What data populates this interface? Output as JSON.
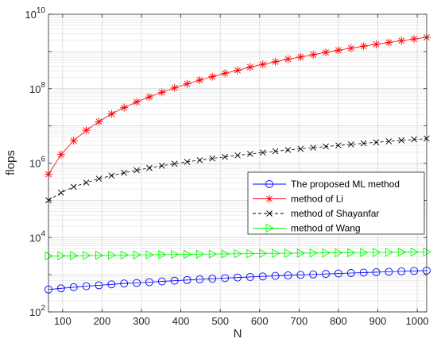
{
  "chart_data": {
    "type": "line",
    "xlabel": "N",
    "ylabel": "flops",
    "xlim": [
      64,
      1024
    ],
    "ylim": [
      100,
      10000000000
    ],
    "y_scale": "log",
    "grid": true,
    "legend_position": "right",
    "x_ticks": [
      100,
      200,
      300,
      400,
      500,
      600,
      700,
      800,
      900,
      1000
    ],
    "y_ticks": [
      {
        "value": 100,
        "base": "10",
        "exp": "2"
      },
      {
        "value": 10000,
        "base": "10",
        "exp": "4"
      },
      {
        "value": 1000000,
        "base": "10",
        "exp": "6"
      },
      {
        "value": 100000000,
        "base": "10",
        "exp": "8"
      },
      {
        "value": 10000000000,
        "base": "10",
        "exp": "10"
      }
    ],
    "x": [
      64,
      96,
      128,
      160,
      192,
      224,
      256,
      288,
      320,
      352,
      384,
      416,
      448,
      480,
      512,
      544,
      576,
      608,
      640,
      672,
      704,
      736,
      768,
      800,
      832,
      864,
      896,
      928,
      960,
      992,
      1024
    ],
    "series": [
      {
        "name": "The proposed ML method",
        "color": "#0000ff",
        "marker": "circle",
        "dash": "solid",
        "values": [
          400,
          430,
          460,
          490,
          520,
          550,
          580,
          600,
          630,
          660,
          690,
          720,
          750,
          780,
          810,
          840,
          870,
          900,
          930,
          960,
          990,
          1020,
          1050,
          1080,
          1110,
          1140,
          1170,
          1200,
          1230,
          1260,
          1290
        ]
      },
      {
        "name": "method of Li",
        "color": "#ff0000",
        "marker": "asterisk",
        "dash": "solid",
        "values": [
          500000,
          1700000,
          4000000,
          7600000,
          13000000,
          21000000,
          31000000,
          44000000,
          60000000,
          80000000,
          105000000,
          135000000,
          170000000,
          210000000,
          260000000,
          310000000,
          380000000,
          450000000,
          530000000,
          620000000,
          710000000,
          820000000,
          950000000,
          1080000000,
          1230000000,
          1390000000,
          1560000000,
          1750000000,
          1950000000,
          2170000000,
          2400000000
        ]
      },
      {
        "name": "method of Shayanfar",
        "color": "#000000",
        "marker": "x",
        "dash": "dashed",
        "values": [
          100000,
          160000,
          230000,
          300000,
          380000,
          460000,
          550000,
          640000,
          740000,
          850000,
          960000,
          1080000,
          1200000,
          1330000,
          1470000,
          1610000,
          1760000,
          1920000,
          2080000,
          2250000,
          2420000,
          2600000,
          2790000,
          2990000,
          3190000,
          3400000,
          3620000,
          3840000,
          4080000,
          4320000,
          4570000
        ]
      },
      {
        "name": "method of Wang",
        "color": "#00ff00",
        "marker": "triangle-right",
        "dash": "solid",
        "values": [
          3200,
          3230,
          3260,
          3290,
          3320,
          3350,
          3380,
          3410,
          3440,
          3470,
          3500,
          3530,
          3560,
          3590,
          3620,
          3650,
          3680,
          3710,
          3740,
          3770,
          3800,
          3830,
          3860,
          3890,
          3920,
          3950,
          3980,
          4010,
          4040,
          4070,
          4100
        ]
      }
    ]
  }
}
